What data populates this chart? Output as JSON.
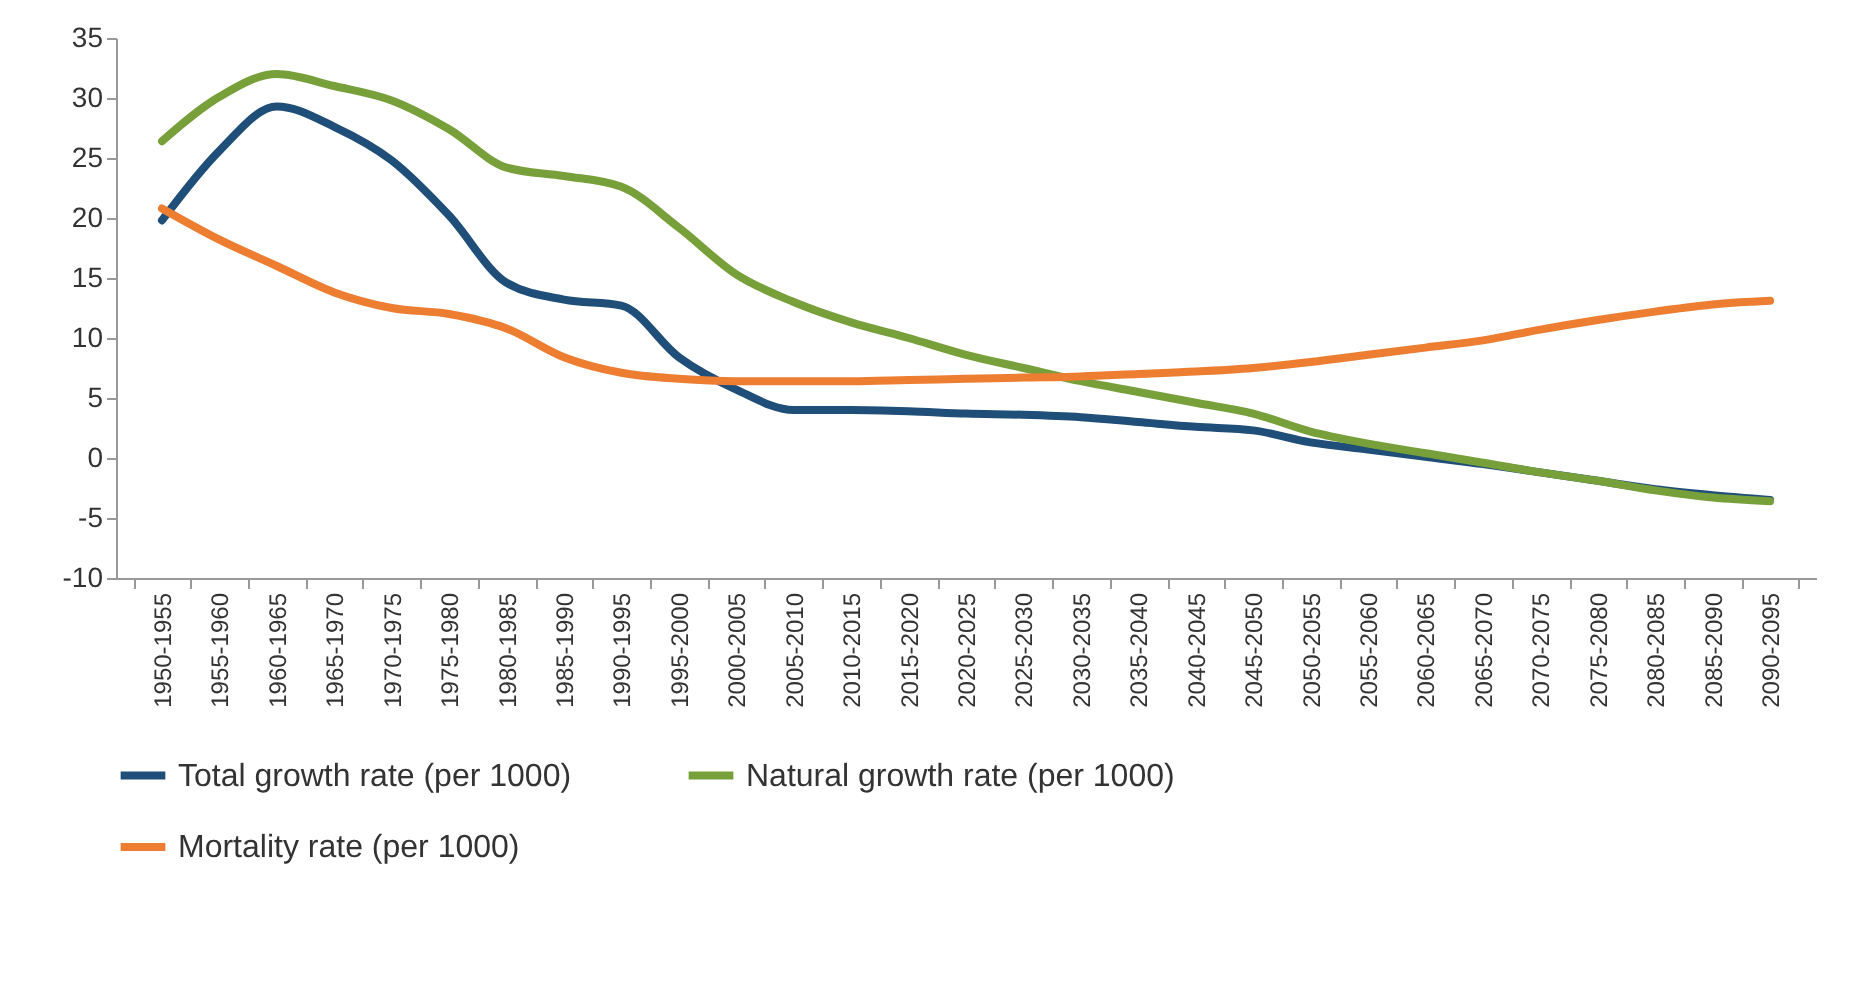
{
  "chart_data": {
    "type": "line",
    "categories": [
      "1950-1955",
      "1955-1960",
      "1960-1965",
      "1965-1970",
      "1970-1975",
      "1975-1980",
      "1980-1985",
      "1985-1990",
      "1990-1995",
      "1995-2000",
      "2000-2005",
      "2005-2010",
      "2010-2015",
      "2015-2020",
      "2020-2025",
      "2025-2030",
      "2030-2035",
      "2035-2040",
      "2040-2045",
      "2045-2050",
      "2050-2055",
      "2055-2060",
      "2060-2065",
      "2065-2070",
      "2070-2075",
      "2075-2080",
      "2080-2085",
      "2085-2090",
      "2090-2095"
    ],
    "series": [
      {
        "name": "Total growth rate (per 1000)",
        "color": "#1f4e79",
        "values": [
          19.8,
          25.6,
          29.3,
          27.6,
          24.8,
          20.2,
          14.6,
          13.2,
          12.7,
          8.4,
          5.7,
          4.0,
          4.0,
          3.9,
          3.7,
          3.6,
          3.4,
          3.0,
          2.6,
          2.3,
          1.3,
          0.7,
          0.1,
          -0.5,
          -1.2,
          -1.9,
          -2.6,
          -3.1,
          -3.5
        ]
      },
      {
        "name": "Natural growth rate (per 1000)",
        "color": "#77a03a",
        "values": [
          26.4,
          30.1,
          32.0,
          31.0,
          29.8,
          27.4,
          24.2,
          23.5,
          22.6,
          19.2,
          15.3,
          13.0,
          11.3,
          10.0,
          8.6,
          7.5,
          6.4,
          5.5,
          4.6,
          3.7,
          2.2,
          1.2,
          0.4,
          -0.4,
          -1.2,
          -1.9,
          -2.7,
          -3.3,
          -3.6
        ]
      },
      {
        "name": "Mortality rate (per 1000)",
        "color": "#ed7d31",
        "values": [
          20.8,
          18.2,
          16.0,
          13.8,
          12.5,
          12.0,
          10.8,
          8.4,
          7.1,
          6.6,
          6.4,
          6.4,
          6.4,
          6.5,
          6.6,
          6.7,
          6.8,
          7.0,
          7.2,
          7.5,
          8.0,
          8.6,
          9.2,
          9.8,
          10.7,
          11.5,
          12.2,
          12.8,
          13.1
        ]
      }
    ],
    "ylim": [
      -10,
      35
    ],
    "yticks": [
      -10,
      -5,
      0,
      5,
      10,
      15,
      20,
      25,
      30,
      35
    ],
    "grid": false,
    "legend": "bottom",
    "line_style": "solid",
    "marker": "none"
  }
}
